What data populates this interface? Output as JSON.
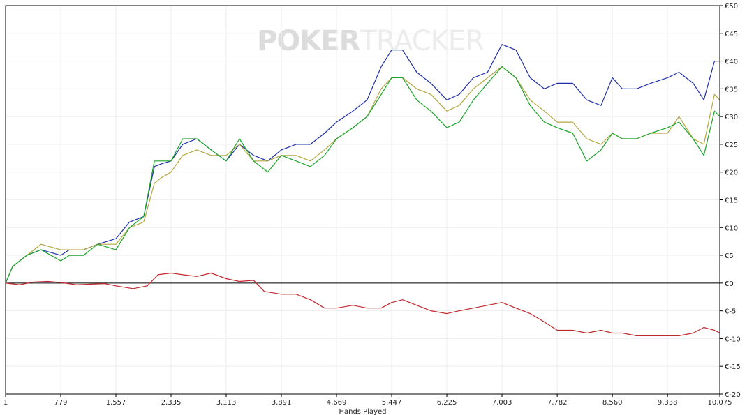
{
  "chart_data": {
    "type": "line",
    "watermark": {
      "text_bold": "POKER",
      "text_light": "TRACKER"
    },
    "xlabel": "Hands Played",
    "ylabel": "",
    "xlim": [
      1,
      10075
    ],
    "ylim": [
      -20,
      50
    ],
    "x_ticks": [
      1,
      779,
      1557,
      2335,
      3113,
      3891,
      4669,
      5447,
      6225,
      7003,
      7782,
      8560,
      9338,
      10075
    ],
    "x_tick_labels": [
      "1",
      "779",
      "1,557",
      "2,335",
      "3,113",
      "3,891",
      "4,669",
      "5,447",
      "6,225",
      "7,003",
      "7,782",
      "8,560",
      "9,338",
      "10,075"
    ],
    "y_ticks": [
      -20,
      -15,
      -10,
      -5,
      0,
      5,
      10,
      15,
      20,
      25,
      30,
      35,
      40,
      45,
      50
    ],
    "y_tick_labels": [
      "€-20",
      "€-15",
      "€-10",
      "€-5",
      "€0",
      "€5",
      "€10",
      "€15",
      "€20",
      "€25",
      "€30",
      "€35",
      "€40",
      "€45",
      "€50"
    ],
    "grid": true,
    "series": [
      {
        "color": "#1f2fa8",
        "points": [
          [
            1,
            0
          ],
          [
            100,
            3
          ],
          [
            300,
            5
          ],
          [
            500,
            6
          ],
          [
            779,
            5
          ],
          [
            900,
            6
          ],
          [
            1100,
            6
          ],
          [
            1300,
            7
          ],
          [
            1557,
            8
          ],
          [
            1750,
            11
          ],
          [
            1950,
            12
          ],
          [
            2100,
            21
          ],
          [
            2200,
            21.5
          ],
          [
            2335,
            22
          ],
          [
            2500,
            25
          ],
          [
            2700,
            26
          ],
          [
            2900,
            24
          ],
          [
            3113,
            22
          ],
          [
            3300,
            25
          ],
          [
            3500,
            23
          ],
          [
            3700,
            22
          ],
          [
            3891,
            24
          ],
          [
            4100,
            25
          ],
          [
            4300,
            25
          ],
          [
            4500,
            27
          ],
          [
            4669,
            29
          ],
          [
            4900,
            31
          ],
          [
            5100,
            33
          ],
          [
            5300,
            39
          ],
          [
            5447,
            42
          ],
          [
            5600,
            42
          ],
          [
            5800,
            38
          ],
          [
            6000,
            36
          ],
          [
            6225,
            33
          ],
          [
            6400,
            34
          ],
          [
            6600,
            37
          ],
          [
            6800,
            38
          ],
          [
            7003,
            43
          ],
          [
            7200,
            42
          ],
          [
            7400,
            37
          ],
          [
            7600,
            35
          ],
          [
            7782,
            36
          ],
          [
            8000,
            36
          ],
          [
            8200,
            33
          ],
          [
            8400,
            32
          ],
          [
            8560,
            37
          ],
          [
            8700,
            35
          ],
          [
            8900,
            35
          ],
          [
            9100,
            36
          ],
          [
            9338,
            37
          ],
          [
            9500,
            38
          ],
          [
            9700,
            36
          ],
          [
            9850,
            33
          ],
          [
            10000,
            40
          ],
          [
            10075,
            40
          ]
        ]
      },
      {
        "color": "#b5a642",
        "points": [
          [
            1,
            0
          ],
          [
            100,
            3
          ],
          [
            300,
            5
          ],
          [
            500,
            7
          ],
          [
            779,
            6
          ],
          [
            900,
            6
          ],
          [
            1100,
            6
          ],
          [
            1300,
            7
          ],
          [
            1557,
            7
          ],
          [
            1750,
            10
          ],
          [
            1950,
            11
          ],
          [
            2100,
            18
          ],
          [
            2200,
            19
          ],
          [
            2335,
            20
          ],
          [
            2500,
            23
          ],
          [
            2700,
            24
          ],
          [
            2900,
            23
          ],
          [
            3113,
            23
          ],
          [
            3300,
            25
          ],
          [
            3500,
            22
          ],
          [
            3700,
            22
          ],
          [
            3891,
            23
          ],
          [
            4100,
            23
          ],
          [
            4300,
            22
          ],
          [
            4500,
            24
          ],
          [
            4669,
            26
          ],
          [
            4900,
            28
          ],
          [
            5100,
            30
          ],
          [
            5300,
            35
          ],
          [
            5447,
            37
          ],
          [
            5600,
            37
          ],
          [
            5800,
            35
          ],
          [
            6000,
            34
          ],
          [
            6225,
            31
          ],
          [
            6400,
            32
          ],
          [
            6600,
            35
          ],
          [
            6800,
            37
          ],
          [
            7003,
            39
          ],
          [
            7200,
            37
          ],
          [
            7400,
            33
          ],
          [
            7600,
            31
          ],
          [
            7782,
            29
          ],
          [
            8000,
            29
          ],
          [
            8200,
            26
          ],
          [
            8400,
            25
          ],
          [
            8560,
            27
          ],
          [
            8700,
            26
          ],
          [
            8900,
            26
          ],
          [
            9100,
            27
          ],
          [
            9338,
            27
          ],
          [
            9500,
            30
          ],
          [
            9700,
            26
          ],
          [
            9850,
            25
          ],
          [
            10000,
            34
          ],
          [
            10075,
            33
          ]
        ]
      },
      {
        "color": "#1aa52a",
        "points": [
          [
            1,
            0
          ],
          [
            100,
            3
          ],
          [
            300,
            5
          ],
          [
            500,
            6
          ],
          [
            779,
            4
          ],
          [
            900,
            5
          ],
          [
            1100,
            5
          ],
          [
            1300,
            7
          ],
          [
            1557,
            6
          ],
          [
            1750,
            10
          ],
          [
            1950,
            12
          ],
          [
            2100,
            22
          ],
          [
            2200,
            22
          ],
          [
            2335,
            22
          ],
          [
            2500,
            26
          ],
          [
            2700,
            26
          ],
          [
            2900,
            24
          ],
          [
            3113,
            22
          ],
          [
            3300,
            26
          ],
          [
            3500,
            22
          ],
          [
            3700,
            20
          ],
          [
            3891,
            23
          ],
          [
            4100,
            22
          ],
          [
            4300,
            21
          ],
          [
            4500,
            23
          ],
          [
            4669,
            26
          ],
          [
            4900,
            28
          ],
          [
            5100,
            30
          ],
          [
            5300,
            34
          ],
          [
            5447,
            37
          ],
          [
            5600,
            37
          ],
          [
            5800,
            33
          ],
          [
            6000,
            31
          ],
          [
            6225,
            28
          ],
          [
            6400,
            29
          ],
          [
            6600,
            33
          ],
          [
            6800,
            36
          ],
          [
            7003,
            39
          ],
          [
            7200,
            37
          ],
          [
            7400,
            32
          ],
          [
            7600,
            29
          ],
          [
            7782,
            28
          ],
          [
            8000,
            27
          ],
          [
            8200,
            22
          ],
          [
            8400,
            24
          ],
          [
            8560,
            27
          ],
          [
            8700,
            26
          ],
          [
            8900,
            26
          ],
          [
            9100,
            27
          ],
          [
            9338,
            28
          ],
          [
            9500,
            29
          ],
          [
            9700,
            26
          ],
          [
            9850,
            23
          ],
          [
            10000,
            31
          ],
          [
            10075,
            30
          ]
        ]
      },
      {
        "color": "#c0282d",
        "points": [
          [
            1,
            0
          ],
          [
            200,
            -0.3
          ],
          [
            400,
            0.2
          ],
          [
            600,
            0.3
          ],
          [
            779,
            0.1
          ],
          [
            1000,
            -0.3
          ],
          [
            1200,
            -0.2
          ],
          [
            1400,
            -0.1
          ],
          [
            1557,
            -0.5
          ],
          [
            1800,
            -1
          ],
          [
            2000,
            -0.5
          ],
          [
            2150,
            1.5
          ],
          [
            2335,
            1.8
          ],
          [
            2500,
            1.5
          ],
          [
            2700,
            1.2
          ],
          [
            2900,
            1.8
          ],
          [
            3113,
            0.8
          ],
          [
            3300,
            0.3
          ],
          [
            3500,
            0.5
          ],
          [
            3650,
            -1.5
          ],
          [
            3891,
            -2
          ],
          [
            4100,
            -2
          ],
          [
            4300,
            -3
          ],
          [
            4500,
            -4.5
          ],
          [
            4669,
            -4.5
          ],
          [
            4900,
            -4
          ],
          [
            5100,
            -4.5
          ],
          [
            5300,
            -4.5
          ],
          [
            5447,
            -3.5
          ],
          [
            5600,
            -3
          ],
          [
            5800,
            -4
          ],
          [
            6000,
            -5
          ],
          [
            6225,
            -5.5
          ],
          [
            6400,
            -5
          ],
          [
            6600,
            -4.5
          ],
          [
            6800,
            -4
          ],
          [
            7003,
            -3.5
          ],
          [
            7200,
            -4.5
          ],
          [
            7400,
            -5.5
          ],
          [
            7600,
            -7
          ],
          [
            7782,
            -8.5
          ],
          [
            8000,
            -8.5
          ],
          [
            8200,
            -9
          ],
          [
            8400,
            -8.5
          ],
          [
            8560,
            -9
          ],
          [
            8700,
            -9
          ],
          [
            8900,
            -9.5
          ],
          [
            9100,
            -9.5
          ],
          [
            9338,
            -9.5
          ],
          [
            9500,
            -9.5
          ],
          [
            9700,
            -9
          ],
          [
            9850,
            -8
          ],
          [
            10000,
            -8.5
          ],
          [
            10075,
            -9
          ]
        ]
      }
    ]
  }
}
